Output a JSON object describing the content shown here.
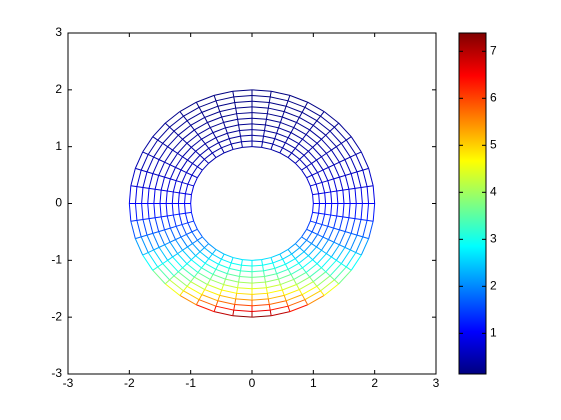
{
  "chart_data": {
    "type": "mesh",
    "xlim": [
      -3,
      3
    ],
    "ylim": [
      -3,
      3
    ],
    "xticks": [
      -3,
      -2,
      -1,
      0,
      1,
      2,
      3
    ],
    "yticks": [
      -3,
      -2,
      -1,
      0,
      1,
      2,
      3
    ],
    "mesh": {
      "radius": [
        1,
        2
      ],
      "rings": 10,
      "spokes": 40
    },
    "colorbar": {
      "clim": [
        0.135,
        7.389
      ],
      "ticks": [
        1,
        2,
        3,
        4,
        5,
        6,
        7
      ],
      "colormap": "jet"
    }
  }
}
